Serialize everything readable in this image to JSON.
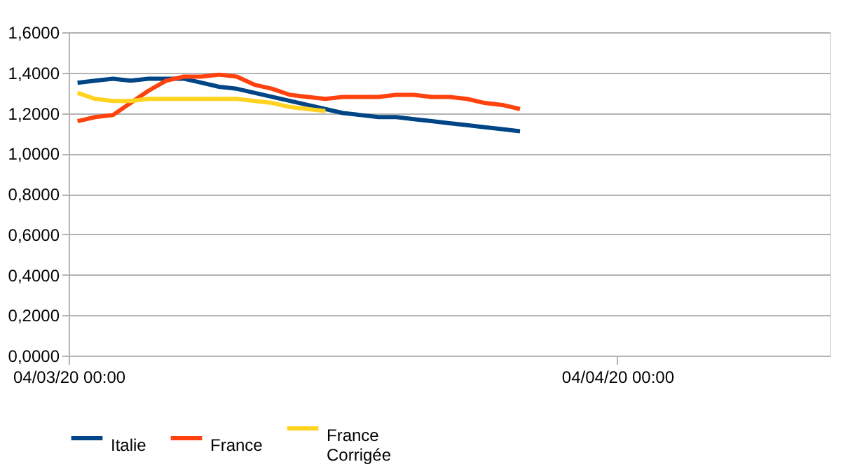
{
  "chart_data": {
    "type": "line",
    "x": [
      "2020-03-04T12:00",
      "2020-03-05T12:00",
      "2020-03-06T12:00",
      "2020-03-07T12:00",
      "2020-03-08T12:00",
      "2020-03-09T12:00",
      "2020-03-10T12:00",
      "2020-03-11T12:00",
      "2020-03-12T12:00",
      "2020-03-13T12:00",
      "2020-03-14T12:00",
      "2020-03-15T12:00",
      "2020-03-16T12:00",
      "2020-03-17T12:00",
      "2020-03-18T12:00",
      "2020-03-19T12:00",
      "2020-03-20T12:00",
      "2020-03-21T12:00",
      "2020-03-22T12:00",
      "2020-03-23T12:00",
      "2020-03-24T12:00",
      "2020-03-25T12:00",
      "2020-03-26T12:00",
      "2020-03-27T12:00",
      "2020-03-28T12:00",
      "2020-03-29T12:00"
    ],
    "series": [
      {
        "name": "Italie",
        "color": "#004586",
        "values": [
          1.35,
          1.36,
          1.37,
          1.36,
          1.37,
          1.37,
          1.37,
          1.35,
          1.33,
          1.32,
          1.3,
          1.28,
          1.26,
          1.24,
          1.22,
          1.2,
          1.19,
          1.18,
          1.18,
          1.17,
          1.16,
          1.15,
          1.14,
          1.13,
          1.12,
          1.11
        ]
      },
      {
        "name": "France",
        "color": "#ff420e",
        "values": [
          1.16,
          1.18,
          1.19,
          1.25,
          1.31,
          1.36,
          1.38,
          1.38,
          1.39,
          1.38,
          1.34,
          1.32,
          1.29,
          1.28,
          1.27,
          1.28,
          1.28,
          1.28,
          1.29,
          1.29,
          1.28,
          1.28,
          1.27,
          1.25,
          1.24,
          1.22
        ]
      },
      {
        "name": "France Corrigée",
        "color": "#ffd320",
        "values": [
          1.3,
          1.27,
          1.26,
          1.26,
          1.27,
          1.27,
          1.27,
          1.27,
          1.27,
          1.27,
          1.26,
          1.25,
          1.23,
          1.22,
          1.21,
          null,
          null,
          null,
          null,
          null,
          null,
          null,
          null,
          null,
          null,
          null
        ]
      }
    ],
    "xlim": [
      "2020-03-04",
      "2020-04-16"
    ],
    "xticks": [
      {
        "value": "2020-03-04",
        "label": "04/03/20 00:00"
      },
      {
        "value": "2020-04-04",
        "label": "04/04/20 00:00"
      }
    ],
    "ylim": [
      0,
      1.6
    ],
    "yticks": [
      {
        "value": 0,
        "label": "0,0000"
      },
      {
        "value": 0.2,
        "label": "0,2000"
      },
      {
        "value": 0.4,
        "label": "0,4000"
      },
      {
        "value": 0.6,
        "label": "0,6000"
      },
      {
        "value": 0.8,
        "label": "0,8000"
      },
      {
        "value": 1.0,
        "label": "1,0000"
      },
      {
        "value": 1.2,
        "label": "1,2000"
      },
      {
        "value": 1.4,
        "label": "1,4000"
      },
      {
        "value": 1.6,
        "label": "1,6000"
      }
    ],
    "grid": "y",
    "legend": "bottom",
    "marker": "none",
    "line_style": "solid"
  }
}
